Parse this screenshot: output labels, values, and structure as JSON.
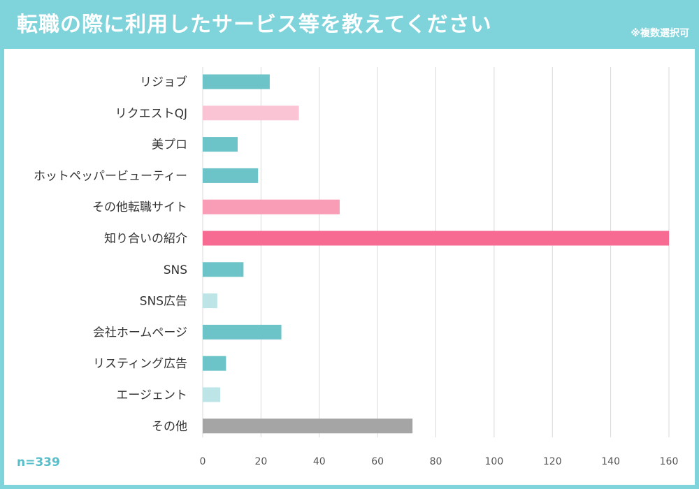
{
  "header": {
    "title": "転職の際に利用したサービス等を教えてください",
    "note": "※複数選択可"
  },
  "footer": {
    "sample_size": "n=339"
  },
  "colors": {
    "frame": "#7fd3db",
    "teal": "#6cc3c8",
    "light_teal": "#bde5e8",
    "light_pink": "#fbc4d5",
    "pink": "#f99cb6",
    "hot_pink": "#f76b92",
    "gray": "#a5a5a5"
  },
  "chart_data": {
    "type": "bar",
    "orientation": "horizontal",
    "categories": [
      "リジョブ",
      "リクエストQJ",
      "美プロ",
      "ホットペッパービューティー",
      "その他転職サイト",
      "知り合いの紹介",
      "SNS",
      "SNS広告",
      "会社ホームページ",
      "リスティング広告",
      "エージェント",
      "その他"
    ],
    "values": [
      23,
      33,
      12,
      19,
      47,
      160,
      14,
      5,
      27,
      8,
      6,
      72
    ],
    "bar_colors": [
      "#6cc3c8",
      "#fbc4d5",
      "#6cc3c8",
      "#6cc3c8",
      "#f99cb6",
      "#f76b92",
      "#6cc3c8",
      "#bde5e8",
      "#6cc3c8",
      "#6cc3c8",
      "#bde5e8",
      "#a5a5a5"
    ],
    "xlim": [
      0,
      160
    ],
    "xticks": [
      0,
      20,
      40,
      60,
      80,
      100,
      120,
      140,
      160
    ],
    "grid": true
  }
}
